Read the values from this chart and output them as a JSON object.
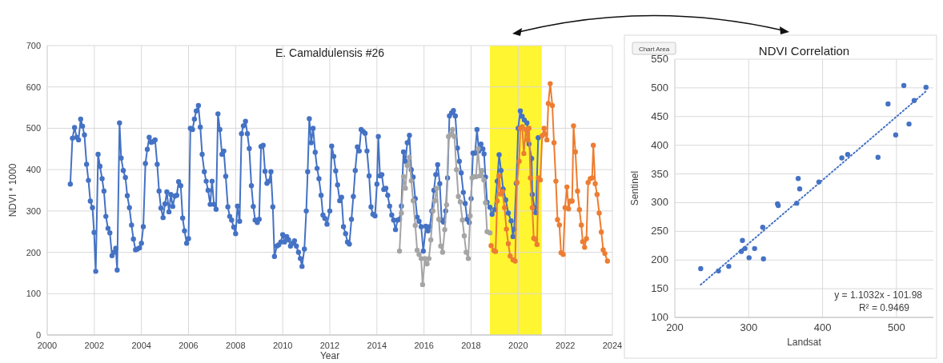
{
  "chart_data": [
    {
      "type": "line",
      "title": "E. Camaldulensis #26",
      "xlabel": "Year",
      "ylabel": "NDVI * 1000",
      "xlim": [
        2000,
        2024
      ],
      "xticks": [
        2000,
        2002,
        2004,
        2006,
        2008,
        2010,
        2012,
        2014,
        2016,
        2018,
        2020,
        2022,
        2024
      ],
      "ylim": [
        0,
        700
      ],
      "yticks": [
        0,
        100,
        200,
        300,
        400,
        500,
        600,
        700
      ],
      "grid": true,
      "marker": "circle",
      "bands": [
        {
          "axis": "x",
          "from": 2018.8,
          "to": 2021.0,
          "color": "#fff530"
        }
      ],
      "series": [
        {
          "color": "#4472c4",
          "x": [
            2000.98,
            2001.07,
            2001.16,
            2001.25,
            2001.33,
            2001.42,
            2001.5,
            2001.58,
            2001.67,
            2001.75,
            2001.83,
            2001.92,
            2001.99,
            2002.06,
            2002.16,
            2002.24,
            2002.33,
            2002.41,
            2002.49,
            2002.58,
            2002.66,
            2002.75,
            2002.83,
            2002.91,
            2002.97,
            2003.07,
            2003.14,
            2003.23,
            2003.32,
            2003.4,
            2003.49,
            2003.58,
            2003.66,
            2003.75,
            2003.83,
            2003.92,
            2004.0,
            2004.08,
            2004.17,
            2004.25,
            2004.33,
            2004.42,
            2004.5,
            2004.58,
            2004.67,
            2004.75,
            2004.83,
            2004.92,
            2005.0,
            2005.08,
            2005.17,
            2005.25,
            2005.33,
            2005.42,
            2005.5,
            2005.58,
            2005.67,
            2005.75,
            2005.83,
            2005.92,
            2006.0,
            2006.08,
            2006.17,
            2006.25,
            2006.33,
            2006.42,
            2006.5,
            2006.58,
            2006.67,
            2006.75,
            2006.83,
            2006.92,
            2007.0,
            2007.08,
            2007.17,
            2007.25,
            2007.33,
            2007.42,
            2007.5,
            2007.58,
            2007.67,
            2007.75,
            2007.83,
            2007.92,
            2008.0,
            2008.08,
            2008.17,
            2008.25,
            2008.33,
            2008.42,
            2008.5,
            2008.58,
            2008.67,
            2008.75,
            2008.83,
            2008.92,
            2009.0,
            2009.08,
            2009.17,
            2009.25,
            2009.33,
            2009.42,
            2009.5,
            2009.58,
            2009.65,
            2009.75,
            2009.83,
            2009.92,
            2010.0,
            2010.08,
            2010.17,
            2010.25,
            2010.33,
            2010.42,
            2010.5,
            2010.58,
            2010.67,
            2010.75,
            2010.82,
            2010.92,
            2011.0,
            2011.06,
            2011.13,
            2011.21,
            2011.29,
            2011.38,
            2011.46,
            2011.54,
            2011.63,
            2011.71,
            2011.79,
            2011.88,
            2012.0,
            2012.08,
            2012.17,
            2012.25,
            2012.33,
            2012.42,
            2012.5,
            2012.58,
            2012.67,
            2012.75,
            2012.83,
            2012.92,
            2013.0,
            2013.08,
            2013.17,
            2013.25,
            2013.33,
            2013.42,
            2013.5,
            2013.58,
            2013.67,
            2013.75,
            2013.83,
            2013.92,
            2014.0,
            2014.06,
            2014.13,
            2014.21,
            2014.29,
            2014.38,
            2014.46,
            2014.54,
            2014.63,
            2014.71,
            2014.79,
            2014.88,
            2014.96,
            2015.04,
            2015.13,
            2015.21,
            2015.29,
            2015.38,
            2015.46,
            2015.54,
            2015.63,
            2015.71,
            2015.79,
            2015.88,
            2015.97,
            2016.08,
            2016.17,
            2016.25,
            2016.33,
            2016.42,
            2016.5,
            2016.58,
            2016.67,
            2016.75,
            2016.83,
            2016.92,
            2017.0,
            2017.08,
            2017.17,
            2017.25,
            2017.33,
            2017.42,
            2017.5,
            2017.58,
            2017.67,
            2017.75,
            2017.83,
            2017.92,
            2018.0,
            2018.08,
            2018.17,
            2018.25,
            2018.33,
            2018.42,
            2018.5,
            2018.55,
            2018.61,
            2018.68,
            2018.8,
            2018.89,
            2019.0,
            2019.11,
            2019.19,
            2019.27,
            2019.36,
            2019.47,
            2019.58,
            2019.7,
            2019.78,
            2019.83,
            2019.92,
            2020.0,
            2020.09,
            2020.17,
            2020.26,
            2020.37,
            2020.46,
            2020.57,
            2020.6,
            2020.69,
            2020.75,
            2020.85
          ],
          "values": [
            365,
            476,
            502,
            478,
            472,
            522,
            505,
            484,
            413,
            374,
            324,
            308,
            248,
            154,
            437,
            408,
            378,
            348,
            287,
            258,
            247,
            192,
            200,
            210,
            157,
            513,
            428,
            398,
            381,
            337,
            308,
            266,
            232,
            206,
            208,
            211,
            222,
            262,
            415,
            449,
            478,
            466,
            468,
            472,
            413,
            348,
            307,
            284,
            317,
            346,
            298,
            340,
            311,
            336,
            338,
            371,
            361,
            283,
            252,
            222,
            233,
            500,
            497,
            522,
            542,
            555,
            503,
            437,
            395,
            372,
            350,
            316,
            372,
            316,
            304,
            535,
            497,
            437,
            445,
            384,
            310,
            287,
            278,
            261,
            245,
            312,
            275,
            487,
            506,
            517,
            487,
            451,
            361,
            311,
            278,
            272,
            280,
            456,
            459,
            396,
            367,
            372,
            395,
            310,
            190,
            215,
            218,
            225,
            243,
            225,
            238,
            230,
            215,
            222,
            228,
            215,
            200,
            185,
            166,
            208,
            300,
            395,
            523,
            465,
            500,
            442,
            403,
            378,
            338,
            290,
            282,
            268,
            300,
            457,
            432,
            397,
            363,
            325,
            333,
            262,
            245,
            225,
            220,
            280,
            335,
            398,
            455,
            445,
            497,
            492,
            488,
            445,
            385,
            310,
            292,
            288,
            365,
            480,
            385,
            388,
            352,
            355,
            338,
            312,
            290,
            278,
            255,
            278,
            280,
            312,
            443,
            420,
            465,
            483,
            400,
            382,
            330,
            285,
            275,
            262,
            203,
            263,
            252,
            262,
            300,
            350,
            388,
            412,
            366,
            278,
            273,
            300,
            380,
            530,
            537,
            543,
            530,
            452,
            420,
            392,
            345,
            318,
            280,
            272,
            330,
            440,
            440,
            497,
            445,
            462,
            450,
            438,
            382,
            321,
            309,
            292,
            303,
            372,
            436,
            398,
            353,
            327,
            295,
            276,
            238,
            256,
            367,
            500,
            542,
            529,
            520,
            513,
            462,
            427,
            340,
            308,
            296,
            477
          ]
        },
        {
          "color": "#a5a5a5",
          "x": [
            2014.96,
            2015.04,
            2015.13,
            2015.21,
            2015.29,
            2015.38,
            2015.46,
            2015.54,
            2015.63,
            2015.71,
            2015.79,
            2015.88,
            2015.94,
            2016.04,
            2016.13,
            2016.21,
            2016.29,
            2016.38,
            2016.46,
            2016.54,
            2016.63,
            2016.71,
            2016.79,
            2016.88,
            2016.96,
            2017.04,
            2017.13,
            2017.21,
            2017.29,
            2017.38,
            2017.46,
            2017.54,
            2017.63,
            2017.71,
            2017.79,
            2017.88,
            2017.96,
            2018.04,
            2018.13,
            2018.21,
            2018.29,
            2018.38,
            2018.46,
            2018.54,
            2018.61,
            2018.68,
            2018.8
          ],
          "values": [
            203,
            295,
            383,
            355,
            410,
            430,
            373,
            325,
            265,
            205,
            195,
            185,
            122,
            185,
            172,
            185,
            230,
            300,
            325,
            355,
            280,
            215,
            200,
            255,
            315,
            480,
            485,
            497,
            480,
            400,
            335,
            322,
            278,
            240,
            200,
            185,
            288,
            380,
            383,
            383,
            450,
            385,
            398,
            375,
            320,
            250,
            247
          ]
        },
        {
          "color": "#ed7d31",
          "x": [
            2018.85,
            2018.97,
            2019.04,
            2019.11,
            2019.19,
            2019.25,
            2019.33,
            2019.42,
            2019.5,
            2019.58,
            2019.66,
            2019.78,
            2019.87,
            2019.95,
            2020.04,
            2020.09,
            2020.17,
            2020.24,
            2020.32,
            2020.4,
            2020.46,
            2020.52,
            2020.6,
            2020.66,
            2020.74,
            2020.8,
            2020.86,
            2020.94,
            2021.02,
            2021.1,
            2021.16,
            2021.22,
            2021.28,
            2021.36,
            2021.45,
            2021.52,
            2021.6,
            2021.67,
            2021.75,
            2021.82,
            2021.91,
            2021.99,
            2022.07,
            2022.14,
            2022.21,
            2022.29,
            2022.35,
            2022.43,
            2022.52,
            2022.6,
            2022.68,
            2022.74,
            2022.82,
            2022.9,
            2022.97,
            2023.06,
            2023.14,
            2023.19,
            2023.27,
            2023.35,
            2023.44,
            2023.53,
            2023.61,
            2023.68,
            2023.79
          ],
          "values": [
            216,
            204,
            202,
            324,
            385,
            341,
            347,
            308,
            256,
            221,
            191,
            182,
            179,
            369,
            420,
            500,
            504,
            439,
            497,
            472,
            500,
            380,
            308,
            234,
            231,
            219,
            380,
            375,
            482,
            500,
            486,
            472,
            560,
            608,
            555,
            465,
            372,
            279,
            266,
            199,
            195,
            308,
            358,
            305,
            324,
            324,
            506,
            443,
            348,
            303,
            266,
            226,
            212,
            233,
            369,
            378,
            380,
            459,
            366,
            340,
            295,
            249,
            206,
            197,
            179
          ]
        }
      ]
    },
    {
      "type": "scatter",
      "title": "NDVI Correlation",
      "xlabel": "Landsat",
      "ylabel": "Sentinel",
      "xlim": [
        200,
        550
      ],
      "xticks": [
        200,
        300,
        400,
        500
      ],
      "ylim": [
        100,
        550
      ],
      "yticks": [
        100,
        150,
        200,
        250,
        300,
        350,
        400,
        450,
        500,
        550
      ],
      "grid": true,
      "marker": "circle",
      "annotations": [
        "y = 1.1032x - 101.98",
        "R² = 0.9469",
        "Chart Area"
      ],
      "series": [
        {
          "color": "#4472c4",
          "x": [
            235,
            259,
            273,
            291.5,
            290,
            295,
            300.5,
            308,
            319,
            320,
            339,
            340,
            365,
            367,
            369,
            395,
            426,
            434,
            475,
            488.6,
            499,
            510,
            517,
            524,
            540
          ],
          "values": [
            185,
            181,
            189,
            234,
            215,
            220,
            204,
            220,
            257,
            202,
            298,
            295,
            299,
            342,
            324,
            336,
            378,
            384,
            379,
            472,
            418,
            504,
            437,
            478,
            501
          ]
        },
        {
          "type": "line",
          "color": "#4472c4",
          "marker": "none",
          "line_style": "dotted",
          "x": [
            235,
            540
          ],
          "values": [
            157,
            494
          ]
        }
      ]
    }
  ]
}
